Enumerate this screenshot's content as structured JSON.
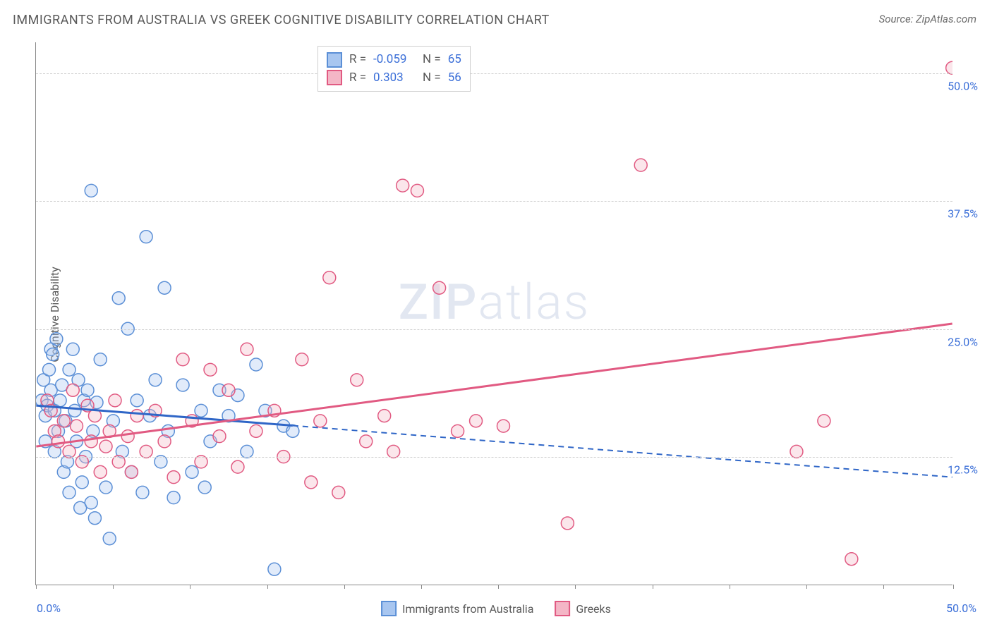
{
  "title": "IMMIGRANTS FROM AUSTRALIA VS GREEK COGNITIVE DISABILITY CORRELATION CHART",
  "source": "Source: ZipAtlas.com",
  "y_axis_label": "Cognitive Disability",
  "watermark_bold": "ZIP",
  "watermark_rest": "atlas",
  "chart": {
    "type": "scatter",
    "background_color": "#ffffff",
    "grid_color": "#d0d0d0",
    "axis_color": "#888888",
    "xlim": [
      0,
      50
    ],
    "ylim": [
      0,
      53
    ],
    "y_ticks": [
      12.5,
      25.0,
      37.5,
      50.0
    ],
    "y_tick_labels": [
      "12.5%",
      "25.0%",
      "37.5%",
      "50.0%"
    ],
    "x_tick_positions": [
      0,
      4.2,
      8.4,
      12.6,
      16.8,
      21.0,
      25.2,
      29.4,
      33.6,
      37.8,
      42.0,
      46.2,
      50.0
    ],
    "x_left_label": "0.0%",
    "x_right_label": "50.0%",
    "marker_radius": 9,
    "marker_fill_opacity": 0.35,
    "marker_stroke_width": 1.5,
    "series": [
      {
        "name": "Immigrants from Australia",
        "legend_label": "Immigrants from Australia",
        "color_fill": "#a8c6f0",
        "color_stroke": "#5b8fd6",
        "R": "-0.059",
        "N": "65",
        "regression": {
          "x1": 0,
          "y1": 17.5,
          "x2": 50,
          "y2": 10.5,
          "solid_until_x": 14,
          "color": "#2f66c7",
          "width": 3
        },
        "points": [
          [
            0.3,
            18
          ],
          [
            0.4,
            20
          ],
          [
            0.5,
            16.5
          ],
          [
            0.5,
            14
          ],
          [
            0.6,
            17.5
          ],
          [
            0.7,
            21
          ],
          [
            0.8,
            23
          ],
          [
            0.8,
            19
          ],
          [
            0.9,
            22.5
          ],
          [
            1.0,
            17
          ],
          [
            1.0,
            13
          ],
          [
            1.1,
            24
          ],
          [
            1.2,
            15
          ],
          [
            1.3,
            18
          ],
          [
            1.4,
            19.5
          ],
          [
            1.5,
            11
          ],
          [
            1.6,
            16
          ],
          [
            1.7,
            12
          ],
          [
            1.8,
            21
          ],
          [
            1.8,
            9
          ],
          [
            2.0,
            23
          ],
          [
            2.1,
            17
          ],
          [
            2.2,
            14
          ],
          [
            2.3,
            20
          ],
          [
            2.4,
            7.5
          ],
          [
            2.5,
            10
          ],
          [
            2.6,
            18
          ],
          [
            2.7,
            12.5
          ],
          [
            2.8,
            19
          ],
          [
            3.0,
            8
          ],
          [
            3.1,
            15
          ],
          [
            3.2,
            6.5
          ],
          [
            3.3,
            17.8
          ],
          [
            3.5,
            22
          ],
          [
            3.0,
            38.5
          ],
          [
            3.8,
            9.5
          ],
          [
            4.0,
            4.5
          ],
          [
            4.2,
            16
          ],
          [
            4.5,
            28
          ],
          [
            4.7,
            13
          ],
          [
            5.0,
            25
          ],
          [
            5.2,
            11
          ],
          [
            5.5,
            18
          ],
          [
            5.8,
            9
          ],
          [
            6.0,
            34
          ],
          [
            6.2,
            16.5
          ],
          [
            6.5,
            20
          ],
          [
            6.8,
            12
          ],
          [
            7.0,
            29
          ],
          [
            7.2,
            15
          ],
          [
            7.5,
            8.5
          ],
          [
            8.0,
            19.5
          ],
          [
            8.5,
            11
          ],
          [
            9.0,
            17
          ],
          [
            9.2,
            9.5
          ],
          [
            9.5,
            14
          ],
          [
            10.0,
            19
          ],
          [
            10.5,
            16.5
          ],
          [
            11.0,
            18.5
          ],
          [
            11.5,
            13
          ],
          [
            12.0,
            21.5
          ],
          [
            12.5,
            17
          ],
          [
            13.0,
            1.5
          ],
          [
            13.5,
            15.5
          ],
          [
            14.0,
            15
          ]
        ]
      },
      {
        "name": "Greeks",
        "legend_label": "Greeks",
        "color_fill": "#f4b6c6",
        "color_stroke": "#e15a82",
        "R": "0.303",
        "N": "56",
        "regression": {
          "x1": 0,
          "y1": 13.5,
          "x2": 50,
          "y2": 25.5,
          "solid_until_x": 50,
          "color": "#e15a82",
          "width": 3
        },
        "points": [
          [
            0.6,
            18
          ],
          [
            0.8,
            17
          ],
          [
            1.0,
            15
          ],
          [
            1.2,
            14
          ],
          [
            1.5,
            16
          ],
          [
            1.8,
            13
          ],
          [
            2.0,
            19
          ],
          [
            2.2,
            15.5
          ],
          [
            2.5,
            12
          ],
          [
            2.8,
            17.5
          ],
          [
            3.0,
            14
          ],
          [
            3.2,
            16.5
          ],
          [
            3.5,
            11
          ],
          [
            3.8,
            13.5
          ],
          [
            4.0,
            15
          ],
          [
            4.3,
            18
          ],
          [
            4.5,
            12
          ],
          [
            5.0,
            14.5
          ],
          [
            5.2,
            11
          ],
          [
            5.5,
            16.5
          ],
          [
            6.0,
            13
          ],
          [
            6.5,
            17
          ],
          [
            7.0,
            14
          ],
          [
            7.5,
            10.5
          ],
          [
            8.0,
            22
          ],
          [
            8.5,
            16
          ],
          [
            9.0,
            12
          ],
          [
            9.5,
            21
          ],
          [
            10.0,
            14.5
          ],
          [
            10.5,
            19
          ],
          [
            11.0,
            11.5
          ],
          [
            11.5,
            23
          ],
          [
            12.0,
            15
          ],
          [
            13.0,
            17
          ],
          [
            13.5,
            12.5
          ],
          [
            14.5,
            22
          ],
          [
            15.0,
            10
          ],
          [
            15.5,
            16
          ],
          [
            16.0,
            30
          ],
          [
            16.5,
            9
          ],
          [
            17.5,
            20
          ],
          [
            18.0,
            14
          ],
          [
            19.0,
            16.5
          ],
          [
            19.5,
            13
          ],
          [
            20.0,
            39
          ],
          [
            20.8,
            38.5
          ],
          [
            22.0,
            29
          ],
          [
            23.0,
            15
          ],
          [
            24.0,
            16
          ],
          [
            25.5,
            15.5
          ],
          [
            29.0,
            6
          ],
          [
            33.0,
            41
          ],
          [
            41.5,
            13
          ],
          [
            43.0,
            16
          ],
          [
            44.5,
            2.5
          ],
          [
            50.0,
            50.5
          ]
        ]
      }
    ]
  },
  "stats_box": {
    "rows": [
      {
        "swatch_fill": "#a8c6f0",
        "swatch_stroke": "#5b8fd6",
        "r_label": "R =",
        "r_val": "-0.059",
        "n_label": "N =",
        "n_val": "65"
      },
      {
        "swatch_fill": "#f4b6c6",
        "swatch_stroke": "#e15a82",
        "r_label": "R =",
        "r_val": "0.303",
        "n_label": "N =",
        "n_val": "56"
      }
    ]
  },
  "bottom_legend": [
    {
      "swatch_fill": "#a8c6f0",
      "swatch_stroke": "#5b8fd6",
      "label": "Immigrants from Australia"
    },
    {
      "swatch_fill": "#f4b6c6",
      "swatch_stroke": "#e15a82",
      "label": "Greeks"
    }
  ]
}
